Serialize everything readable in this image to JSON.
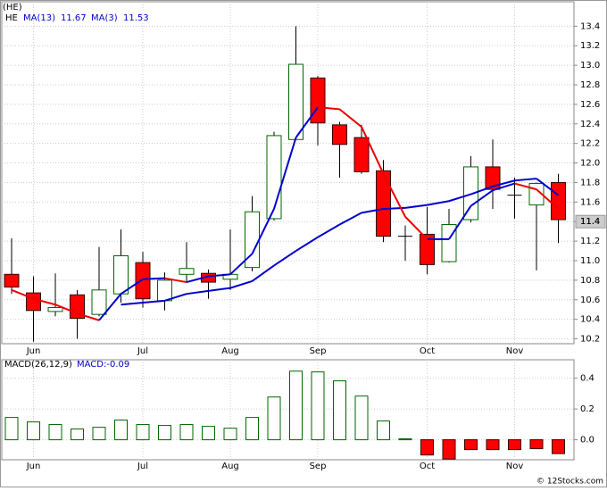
{
  "chart_data": [
    {
      "type": "candlestick",
      "title": "(HE)",
      "name": "HE",
      "categories": [
        null,
        "Jun",
        null,
        null,
        null,
        null,
        "Jul",
        null,
        null,
        null,
        "Aug",
        null,
        null,
        null,
        "Sep",
        null,
        null,
        null,
        null,
        "Oct",
        null,
        null,
        null,
        "Nov",
        null,
        null
      ],
      "open": [
        10.86,
        10.67,
        10.48,
        10.65,
        10.45,
        10.66,
        10.98,
        10.59,
        10.86,
        10.87,
        10.81,
        10.93,
        11.43,
        12.24,
        12.87,
        12.39,
        12.26,
        11.92,
        11.25,
        11.27,
        10.99,
        11.42,
        11.96,
        11.67,
        11.57,
        11.8
      ],
      "high": [
        11.23,
        10.84,
        10.87,
        10.7,
        11.14,
        11.32,
        11.09,
        10.88,
        11.19,
        10.91,
        11.32,
        11.66,
        12.32,
        13.4,
        12.89,
        12.42,
        12.39,
        12.03,
        11.36,
        11.55,
        11.53,
        12.07,
        12.24,
        11.85,
        11.8,
        11.89
      ],
      "low": [
        10.66,
        10.17,
        10.43,
        10.2,
        10.43,
        10.57,
        10.52,
        10.49,
        10.79,
        10.61,
        10.7,
        10.89,
        11.41,
        12.24,
        12.18,
        11.85,
        11.89,
        11.19,
        11.0,
        10.86,
        10.98,
        11.39,
        11.53,
        11.43,
        10.9,
        11.18
      ],
      "close": [
        10.73,
        10.49,
        10.52,
        10.41,
        10.7,
        11.05,
        10.61,
        10.8,
        10.92,
        10.78,
        10.86,
        11.5,
        12.28,
        13.01,
        12.41,
        12.19,
        11.91,
        11.25,
        11.25,
        10.96,
        11.37,
        11.96,
        11.73,
        11.67,
        11.79,
        11.42
      ],
      "up_color": "#ffffff",
      "up_edge": "#006600",
      "down_color": "#ff0000",
      "down_edge": "#330000",
      "series": [
        {
          "name": "MA(13)",
          "color": "#0000cc",
          "legend_value": 11.67,
          "values": [
            null,
            null,
            null,
            null,
            null,
            10.55,
            10.57,
            10.59,
            10.66,
            10.69,
            10.72,
            10.79,
            10.95,
            11.1,
            11.24,
            11.37,
            11.49,
            11.53,
            11.54,
            11.57,
            11.61,
            11.68,
            11.76,
            11.82,
            11.84,
            11.67
          ]
        },
        {
          "name": "MA(3)",
          "color": "#0000cc",
          "down_color": "#ee0000",
          "legend_value": 11.53,
          "values": [
            10.7,
            10.61,
            10.55,
            10.46,
            10.39,
            10.66,
            10.81,
            10.82,
            10.78,
            10.84,
            10.86,
            11.07,
            11.53,
            12.26,
            12.57,
            12.55,
            12.37,
            11.89,
            11.45,
            11.22,
            11.22,
            11.56,
            11.72,
            11.79,
            11.73,
            11.53
          ]
        }
      ],
      "last_price": 11.4,
      "ylim": [
        10.15,
        13.65
      ],
      "yticks": [
        10.2,
        10.4,
        10.6,
        10.8,
        {
          "value": 11,
          "label": "11.0"
        },
        11.2,
        11.4,
        11.6,
        11.8,
        {
          "value": 12,
          "label": "12.0"
        },
        12.2,
        12.4,
        12.6,
        12.8,
        {
          "value": 13,
          "label": "13.0"
        },
        13.2,
        13.4
      ],
      "grid": true
    },
    {
      "type": "bar",
      "title": "MACD(26,12,9)",
      "legend": "MACD:-0.09",
      "categories": [
        null,
        "Jun",
        null,
        null,
        null,
        null,
        "Jul",
        null,
        null,
        null,
        "Aug",
        null,
        null,
        null,
        "Sep",
        null,
        null,
        null,
        null,
        "Oct",
        null,
        null,
        null,
        "Nov",
        null,
        null
      ],
      "values": [
        0.145,
        0.116,
        0.099,
        0.07,
        0.081,
        0.128,
        0.099,
        0.093,
        0.099,
        0.087,
        0.075,
        0.145,
        0.278,
        0.446,
        0.441,
        0.383,
        0.284,
        0.122,
        0.006,
        -0.099,
        -0.125,
        -0.064,
        -0.064,
        -0.064,
        -0.058,
        -0.09
      ],
      "color": "#ffffff",
      "edge": "#006600",
      "down_color": "#ff0000",
      "down_edge": "#330000",
      "ylim": [
        -0.13,
        0.52
      ],
      "yticks": [
        0.4,
        0.2,
        {
          "value": 0,
          "label": "0.0"
        }
      ],
      "grid": true
    }
  ],
  "credit": "© 12Stocks.com"
}
